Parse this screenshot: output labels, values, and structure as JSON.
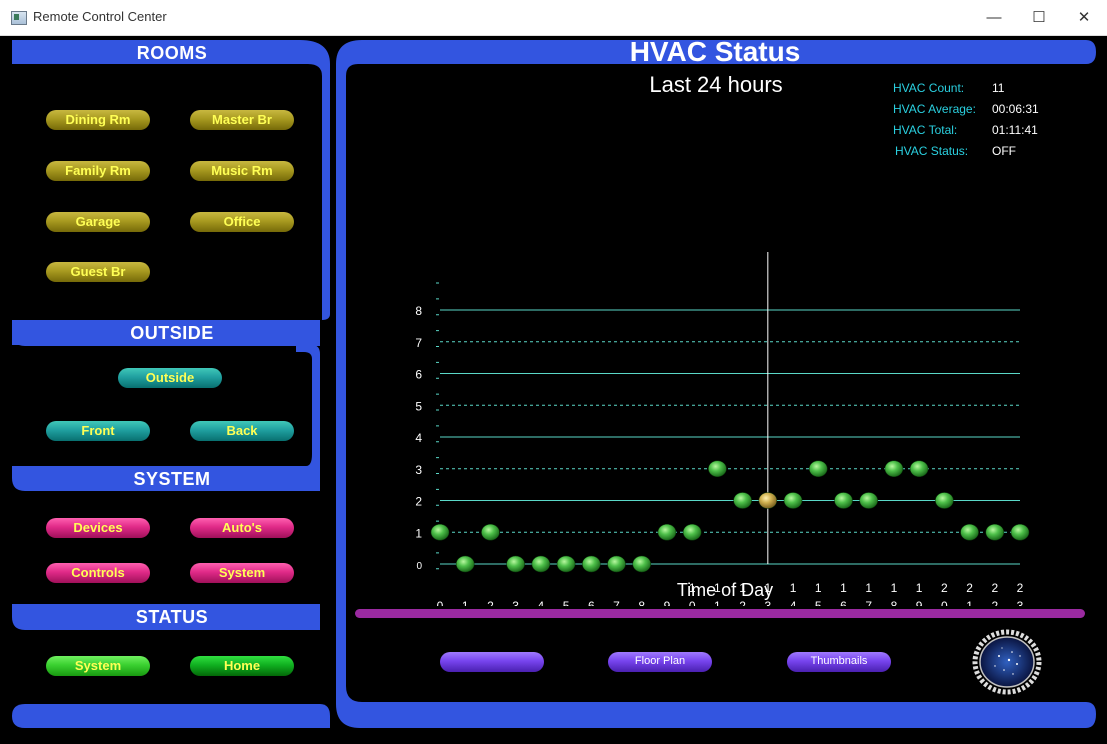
{
  "window": {
    "title": "Remote Control Center"
  },
  "sections": {
    "rooms": "ROOMS",
    "outside": "OUTSIDE",
    "system": "SYSTEM",
    "status": "STATUS"
  },
  "rooms": {
    "dining": "Dining Rm",
    "master": "Master Br",
    "family": "Family Rm",
    "music": "Music Rm",
    "garage": "Garage",
    "office": "Office",
    "guest": "Guest Br"
  },
  "outside": {
    "outside": "Outside",
    "front": "Front",
    "back": "Back"
  },
  "system": {
    "devices": "Devices",
    "autos": "Auto's",
    "controls": "Controls",
    "system": "System"
  },
  "status": {
    "system": "System",
    "home": "Home"
  },
  "hvac": {
    "title": "HVAC  Status",
    "subtitle": "Last 24 hours",
    "stats": [
      {
        "label": "HVAC Count:",
        "value": "11"
      },
      {
        "label": "HVAC Average:",
        "value": "00:06:31"
      },
      {
        "label": "HVAC  Total:",
        "value": "01:11:41"
      },
      {
        "label": "HVAC Status:",
        "value": "OFF"
      }
    ]
  },
  "bottom_buttons": {
    "blank": "",
    "floor_plan": "Floor Plan",
    "thumbnails": "Thumbnails"
  },
  "colors": {
    "panel_blue": "#3355e0",
    "stat_label": "#2ad0e0",
    "grid_line": "#5ad8c8",
    "dot_green": "#3fae3f",
    "dot_highlight": "#c8a848",
    "divider_purple": "#9a2aa0"
  },
  "chart_data": {
    "type": "scatter",
    "xlabel": "Time of Day",
    "ylabel": "",
    "x_tick_labels": [
      [
        "0"
      ],
      [
        "1"
      ],
      [
        "2"
      ],
      [
        "3"
      ],
      [
        "4"
      ],
      [
        "5"
      ],
      [
        "6"
      ],
      [
        "7"
      ],
      [
        "8"
      ],
      [
        "9"
      ],
      [
        "1",
        "0"
      ],
      [
        "1",
        "1"
      ],
      [
        "1",
        "2"
      ],
      [
        "1",
        "3"
      ],
      [
        "1",
        "4"
      ],
      [
        "1",
        "5"
      ],
      [
        "1",
        "6"
      ],
      [
        "1",
        "7"
      ],
      [
        "1",
        "8"
      ],
      [
        "1",
        "9"
      ],
      [
        "2",
        "0"
      ],
      [
        "2",
        "1"
      ],
      [
        "2",
        "2"
      ],
      [
        "2",
        "3"
      ]
    ],
    "y_tick_labels": [
      "0",
      "1",
      "2",
      "3",
      "4",
      "5",
      "6",
      "7",
      "8"
    ],
    "xlim": [
      0,
      23
    ],
    "ylim": [
      0,
      8
    ],
    "grid": true,
    "series": [
      {
        "x": [
          0,
          1,
          2,
          3,
          4,
          5,
          6,
          7,
          8,
          9,
          10,
          11,
          12,
          13,
          14,
          15,
          16,
          17,
          18,
          19,
          20,
          21,
          22,
          23
        ],
        "y": [
          1,
          0,
          1,
          0,
          0,
          0,
          0,
          0,
          0,
          1,
          1,
          3,
          2,
          2,
          2,
          3,
          2,
          2,
          3,
          3,
          2,
          1,
          1,
          1
        ]
      }
    ],
    "highlight_x": 13
  }
}
